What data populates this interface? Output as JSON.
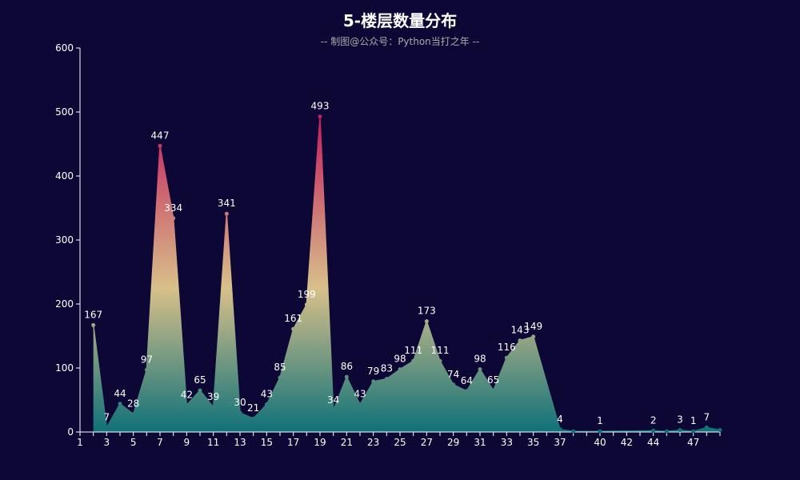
{
  "chart_data": {
    "type": "area",
    "title": "5-楼层数量分布",
    "subtitle": "-- 制图@公众号：Python当打之年 --",
    "xlabel": "",
    "ylabel": "",
    "xlim": [
      1,
      49
    ],
    "ylim": [
      0,
      600
    ],
    "y_ticks": [
      0,
      100,
      200,
      300,
      400,
      500,
      600
    ],
    "x_ticks": [
      1,
      3,
      5,
      7,
      9,
      11,
      13,
      15,
      17,
      19,
      21,
      23,
      25,
      27,
      29,
      31,
      33,
      35,
      37,
      40,
      42,
      44,
      47
    ],
    "grid": false,
    "legend": "none",
    "colors": {
      "background": "#0d0735",
      "gradient_top": "#c2185b",
      "gradient_mid": "#d8c08a",
      "gradient_bottom": "#0f7178",
      "axis": "#ffffff"
    },
    "x": [
      2,
      3,
      4,
      5,
      6,
      7,
      8,
      9,
      10,
      11,
      12,
      13,
      14,
      15,
      16,
      17,
      18,
      19,
      20,
      21,
      22,
      23,
      24,
      25,
      26,
      27,
      28,
      29,
      30,
      31,
      32,
      33,
      34,
      35,
      37,
      38,
      40,
      44,
      45,
      46,
      47,
      48,
      49
    ],
    "values": [
      167,
      7,
      44,
      28,
      97,
      447,
      334,
      42,
      65,
      39,
      341,
      30,
      21,
      43,
      85,
      161,
      199,
      493,
      34,
      86,
      43,
      79,
      83,
      98,
      111,
      173,
      111,
      74,
      64,
      98,
      65,
      116,
      143,
      149,
      4,
      1,
      1,
      2,
      1,
      3,
      1,
      7,
      3
    ],
    "labeled": [
      true,
      true,
      true,
      true,
      true,
      true,
      true,
      true,
      true,
      true,
      true,
      true,
      true,
      true,
      true,
      true,
      true,
      true,
      true,
      true,
      true,
      true,
      true,
      true,
      true,
      true,
      true,
      true,
      true,
      true,
      true,
      true,
      true,
      true,
      true,
      false,
      true,
      true,
      false,
      true,
      true,
      true,
      false
    ]
  }
}
